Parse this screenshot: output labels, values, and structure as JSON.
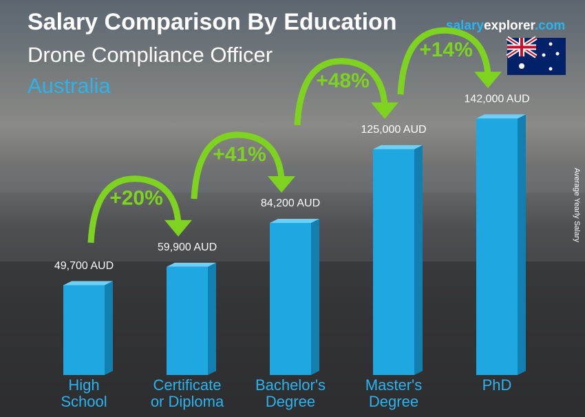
{
  "chart_data": {
    "type": "bar",
    "title": "Salary Comparison By Education",
    "subtitle": "Drone Compliance Officer",
    "region": "Australia",
    "brand": {
      "part1": "salary",
      "part2": "explorer",
      "part3": ".com"
    },
    "y_label": "Average Yearly Salary",
    "categories": [
      "High\nSchool",
      "Certificate\nor Diploma",
      "Bachelor's\nDegree",
      "Master's\nDegree",
      "PhD"
    ],
    "values": [
      49700,
      59900,
      84200,
      125000,
      142000
    ],
    "value_labels": [
      "49,700 AUD",
      "59,900 AUD",
      "84,200 AUD",
      "125,000 AUD",
      "142,000 AUD"
    ],
    "color": "#1ea7e1",
    "ylim": [
      0,
      160000
    ],
    "increases": {
      "values": [
        20,
        41,
        48,
        14
      ],
      "value_labels": [
        "+20%",
        "+41%",
        "+48%",
        "+14%"
      ],
      "color": "#7ed321"
    }
  }
}
